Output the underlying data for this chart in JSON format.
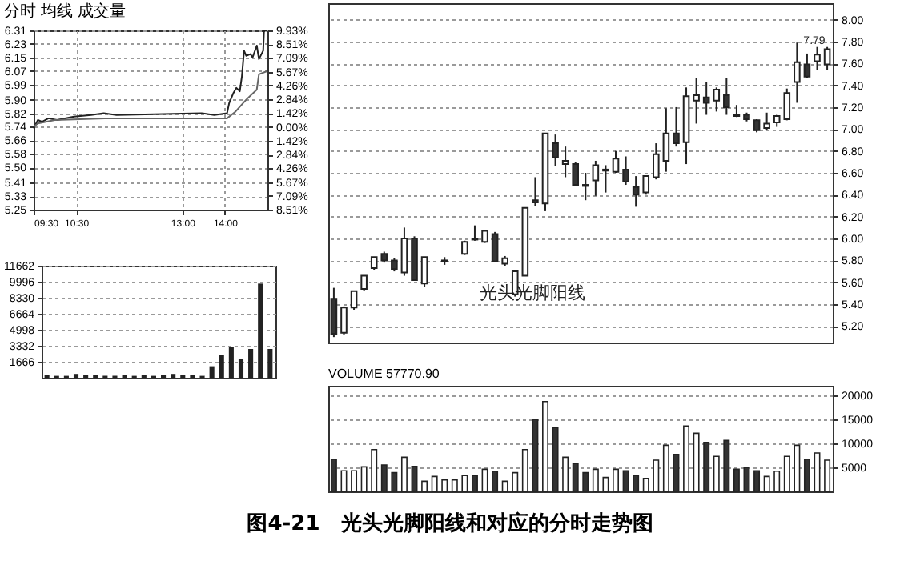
{
  "chart_data": [
    {
      "type": "candlestick",
      "categories": [
        null,
        null,
        null,
        null,
        null,
        null,
        null,
        null,
        null,
        null,
        null,
        null,
        null,
        null,
        null,
        null,
        null,
        null,
        null,
        null,
        null,
        null,
        null,
        null,
        null,
        null,
        null,
        null,
        null,
        null,
        null,
        null,
        null,
        null,
        null,
        null,
        null,
        null,
        null,
        null,
        null,
        null,
        null,
        null,
        null,
        null,
        null,
        null,
        null,
        null
      ],
      "ohlc": [
        [
          5.45,
          5.55,
          5.1,
          5.13
        ],
        [
          5.14,
          5.38,
          5.12,
          5.37
        ],
        [
          5.37,
          5.52,
          5.35,
          5.52
        ],
        [
          5.54,
          5.66,
          5.52,
          5.66
        ],
        [
          5.73,
          5.83,
          5.71,
          5.83
        ],
        [
          5.86,
          5.88,
          5.78,
          5.8
        ],
        [
          5.8,
          5.82,
          5.7,
          5.72
        ],
        [
          5.69,
          6.1,
          5.66,
          6.0
        ],
        [
          6.0,
          6.02,
          5.62,
          5.62
        ],
        [
          5.59,
          5.83,
          5.56,
          5.83
        ],
        null,
        [
          5.79,
          5.83,
          5.76,
          5.8
        ],
        null,
        [
          5.86,
          5.98,
          5.85,
          5.97
        ],
        [
          6.0,
          6.12,
          5.98,
          5.99
        ],
        [
          5.97,
          6.08,
          5.96,
          6.07
        ],
        [
          6.04,
          6.06,
          5.79,
          5.79
        ],
        [
          5.77,
          5.84,
          5.75,
          5.82
        ],
        [
          5.49,
          5.7,
          5.47,
          5.7
        ],
        [
          5.66,
          6.28,
          5.66,
          6.28
        ],
        [
          6.35,
          6.56,
          6.3,
          6.33
        ],
        [
          6.32,
          6.96,
          6.25,
          6.96
        ],
        [
          6.87,
          6.95,
          6.66,
          6.74
        ],
        [
          6.68,
          6.84,
          6.56,
          6.71
        ],
        [
          6.68,
          6.7,
          6.49,
          6.49
        ],
        [
          6.49,
          6.6,
          6.35,
          6.48
        ],
        [
          6.53,
          6.71,
          6.39,
          6.67
        ],
        [
          6.62,
          6.67,
          6.42,
          6.63
        ],
        [
          6.61,
          6.8,
          6.6,
          6.73
        ],
        [
          6.63,
          6.75,
          6.49,
          6.52
        ],
        [
          6.47,
          6.57,
          6.29,
          6.4
        ],
        [
          6.42,
          6.57,
          6.4,
          6.57
        ],
        [
          6.56,
          6.87,
          6.54,
          6.77
        ],
        [
          6.71,
          7.19,
          6.61,
          6.96
        ],
        [
          6.96,
          7.2,
          6.84,
          6.87
        ],
        [
          6.88,
          7.38,
          6.68,
          7.3
        ],
        [
          7.26,
          7.47,
          7.05,
          7.31
        ],
        [
          7.29,
          7.43,
          7.13,
          7.24
        ],
        [
          7.26,
          7.38,
          7.16,
          7.36
        ],
        [
          7.31,
          7.47,
          7.13,
          7.2
        ],
        [
          7.13,
          7.22,
          7.11,
          7.12
        ],
        [
          7.13,
          7.15,
          7.07,
          7.09
        ],
        [
          7.08,
          7.09,
          6.97,
          6.99
        ],
        [
          7.01,
          7.15,
          6.99,
          7.05
        ],
        [
          7.06,
          7.13,
          7.02,
          7.12
        ],
        [
          7.09,
          7.37,
          7.08,
          7.33
        ],
        [
          7.43,
          7.79,
          7.24,
          7.61
        ],
        [
          7.59,
          7.69,
          7.47,
          7.48
        ],
        [
          7.62,
          7.75,
          7.54,
          7.68
        ],
        [
          7.59,
          7.75,
          7.54,
          7.73
        ]
      ],
      "ylim": [
        5.05,
        8.15
      ],
      "yticks": [
        {
          "value": 5.2,
          "label": "5.20"
        },
        {
          "value": 5.4,
          "label": "5.40"
        },
        {
          "value": 5.6,
          "label": "5.60"
        },
        {
          "value": 5.8,
          "label": "5.80"
        },
        {
          "value": 6.0,
          "label": "6.00"
        },
        {
          "value": 6.2,
          "label": "6.20"
        },
        {
          "value": 6.4,
          "label": "6.40"
        },
        {
          "value": 6.6,
          "label": "6.60"
        },
        {
          "value": 6.8,
          "label": "6.80"
        },
        {
          "value": 7.0,
          "label": "7.00"
        },
        {
          "value": 7.2,
          "label": "7.20"
        },
        {
          "value": 7.4,
          "label": "7.40"
        },
        {
          "value": 7.6,
          "label": "7.60"
        },
        {
          "value": 7.8,
          "label": "7.80"
        },
        {
          "value": 8.0,
          "label": "8.00"
        }
      ],
      "grid": "y",
      "tick_labels": "y",
      "annotations": [
        "光头光脚阳线",
        {
          "text": "7.79",
          "y": 7.79
        }
      ]
    },
    {
      "type": "line",
      "title": "分时 均线 成交量",
      "series": [
        {
          "color": "#222222",
          "x": [
            9.5,
            9.6,
            9.7,
            9.85,
            10.05,
            10.45,
            10.85,
            11.15,
            11.45,
            13.45,
            13.75,
            14.05,
            14.1,
            14.2,
            14.27,
            14.35,
            14.4,
            14.45,
            14.5,
            14.6,
            14.65,
            14.75,
            14.8,
            14.9,
            14.92,
            15
          ],
          "values": [
            5.73,
            5.78,
            5.77,
            5.79,
            5.78,
            5.8,
            5.81,
            5.82,
            5.81,
            5.82,
            5.81,
            5.82,
            5.88,
            5.94,
            5.97,
            5.95,
            6.04,
            6.19,
            6.16,
            6.17,
            6.15,
            6.22,
            6.14,
            6.19,
            6.31,
            6.31
          ]
        },
        {
          "color": "#666666",
          "x": [
            9.5,
            9.6,
            10.0,
            11.17,
            14.05,
            14.25,
            14.5,
            14.75,
            14.8,
            15
          ],
          "values": [
            5.74,
            5.76,
            5.78,
            5.79,
            5.79,
            5.83,
            5.9,
            5.96,
            6.05,
            6.07
          ]
        }
      ],
      "xlim": [
        9.5,
        15
      ],
      "xticks": [
        {
          "value": 9.5,
          "label": "09:30"
        },
        {
          "value": 10.5,
          "label": "10:30"
        },
        {
          "value": 13,
          "label": "13:00"
        },
        {
          "value": 14,
          "label": "14:00"
        }
      ],
      "ylim": [
        5.25,
        6.31
      ],
      "yticks": [
        6.31,
        6.23,
        6.15,
        6.07,
        5.99,
        {
          "value": 5.9,
          "label": "5.90"
        },
        5.82,
        5.74,
        5.66,
        5.58,
        {
          "value": 5.5,
          "label": "5.50"
        },
        5.41,
        5.33,
        5.25
      ],
      "y2lim": [
        -8.51,
        9.93
      ],
      "y2ticks": [
        {
          "value": 9.93,
          "label": "9.93%"
        },
        {
          "value": 8.51,
          "label": "8.51%"
        },
        {
          "value": 7.09,
          "label": "7.09%"
        },
        {
          "value": 5.67,
          "label": "5.67%"
        },
        {
          "value": 4.26,
          "label": "4.26%"
        },
        {
          "value": 2.84,
          "label": "2.84%"
        },
        {
          "value": 1.42,
          "label": "1.42%"
        },
        {
          "value": 0,
          "label": "0.00%"
        },
        {
          "value": -1.42,
          "label": "1.42%"
        },
        {
          "value": -2.84,
          "label": "2.84%"
        },
        {
          "value": -4.26,
          "label": "4.26%"
        },
        {
          "value": -5.67,
          "label": "5.67%"
        },
        {
          "value": -7.09,
          "label": "7.09%"
        },
        {
          "value": -8.51,
          "label": "8.51%"
        }
      ],
      "grid": true,
      "marker": "none"
    },
    {
      "type": "bar",
      "categories": [
        null,
        null,
        null,
        null,
        null,
        null,
        null,
        null,
        null,
        null,
        null,
        null,
        null,
        null,
        null,
        null,
        null,
        null,
        null,
        null,
        null,
        null,
        null,
        null
      ],
      "values": [
        300,
        200,
        200,
        400,
        300,
        300,
        200,
        200,
        300,
        200,
        300,
        200,
        300,
        400,
        300,
        300,
        200,
        1200,
        2400,
        3200,
        2000,
        3000,
        9800,
        3000
      ],
      "color": "#222222",
      "ylim": [
        0,
        11662
      ],
      "yticks": [
        1666,
        3332,
        4998,
        6664,
        8330,
        9996,
        11662
      ],
      "grid": "y",
      "tick_labels": "y"
    },
    {
      "type": "bar",
      "title": "VOLUME 57770.90",
      "categories": [
        null,
        null,
        null,
        null,
        null,
        null,
        null,
        null,
        null,
        null,
        null,
        null,
        null,
        null,
        null,
        null,
        null,
        null,
        null,
        null,
        null,
        null,
        null,
        null,
        null,
        null,
        null,
        null,
        null,
        null,
        null,
        null,
        null,
        null,
        null,
        null,
        null,
        null,
        null,
        null,
        null,
        null,
        null,
        null,
        null,
        null,
        null,
        null,
        null,
        null
      ],
      "values": [
        6700,
        4300,
        4300,
        5100,
        8700,
        5500,
        3900,
        7100,
        5200,
        2100,
        3100,
        2400,
        2400,
        3300,
        3300,
        4600,
        4200,
        2100,
        3900,
        8700,
        15000,
        18700,
        13300,
        7100,
        5800,
        3900,
        4600,
        2900,
        4600,
        4300,
        3300,
        2700,
        6500,
        9600,
        7700,
        13600,
        12100,
        10200,
        7300,
        10600,
        4600,
        5000,
        4300,
        3100,
        4200,
        7300,
        9600,
        6700,
        8000,
        6500
      ],
      "colors": [
        "#333333",
        "#ffffff",
        "#ffffff",
        "#ffffff",
        "#ffffff",
        "#333333",
        "#333333",
        "#ffffff",
        "#333333",
        "#ffffff",
        "#ffffff",
        "#ffffff",
        "#ffffff",
        "#ffffff",
        "#333333",
        "#ffffff",
        "#333333",
        "#ffffff",
        "#ffffff",
        "#ffffff",
        "#333333",
        "#ffffff",
        "#333333",
        "#ffffff",
        "#333333",
        "#333333",
        "#ffffff",
        "#ffffff",
        "#ffffff",
        "#333333",
        "#333333",
        "#ffffff",
        "#ffffff",
        "#ffffff",
        "#333333",
        "#ffffff",
        "#ffffff",
        "#333333",
        "#ffffff",
        "#333333",
        "#333333",
        "#333333",
        "#333333",
        "#ffffff",
        "#ffffff",
        "#ffffff",
        "#ffffff",
        "#333333",
        "#ffffff",
        "#ffffff"
      ],
      "ylim": [
        0,
        22000
      ],
      "yticks": [
        5000,
        10000,
        15000,
        20000
      ],
      "grid": "y",
      "tick_labels": "y",
      "annotations": [
        "图4-21　光头光脚阳线和对应的分时走势图"
      ]
    }
  ]
}
